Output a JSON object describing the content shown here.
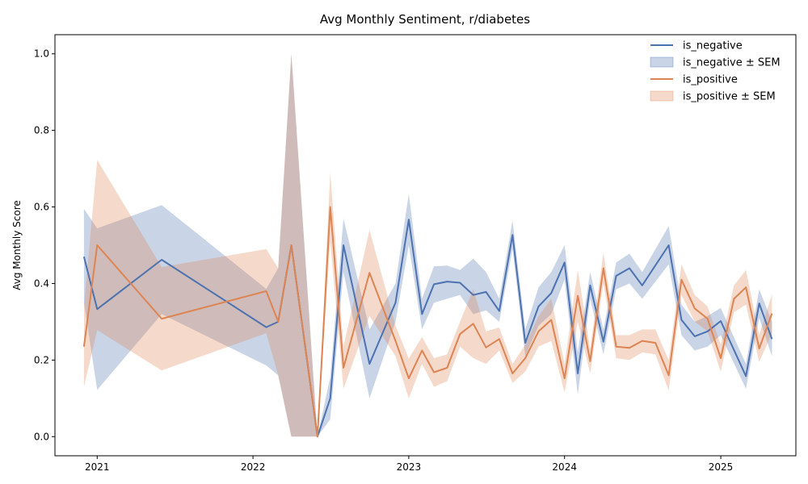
{
  "chart_data": {
    "type": "line",
    "title": "Avg Monthly Sentiment, r/diabetes",
    "xlabel": "",
    "ylabel": "Avg Monthly Score",
    "xlim": [
      "2020-09-24",
      "2025-06-26"
    ],
    "ylim": [
      -0.05,
      1.05
    ],
    "x_ticks": [
      "2021-01-01",
      "2022-01-01",
      "2023-01-01",
      "2024-01-01",
      "2025-01-01"
    ],
    "x_tick_labels": [
      "2021",
      "2022",
      "2023",
      "2024",
      "2025"
    ],
    "y_ticks": [
      0.0,
      0.2,
      0.4,
      0.6,
      0.8,
      1.0
    ],
    "y_tick_labels": [
      "0.0",
      "0.2",
      "0.4",
      "0.6",
      "0.8",
      "1.0"
    ],
    "grid": false,
    "legend_position": "top-right",
    "legend": [
      "is_negative",
      "is_negative ± SEM",
      "is_positive",
      "is_positive ± SEM"
    ],
    "series": [
      {
        "name": "is_negative",
        "band_name": "is_negative ± SEM",
        "color": "#4C72B0",
        "points": [
          {
            "x": "2020-12-01",
            "y": 0.47,
            "lo": 0.35,
            "hi": 0.595
          },
          {
            "x": "2021-01-01",
            "y": 0.333,
            "lo": 0.122,
            "hi": 0.544
          },
          {
            "x": "2021-06-01",
            "y": 0.462,
            "lo": 0.32,
            "hi": 0.605
          },
          {
            "x": "2022-02-01",
            "y": 0.286,
            "lo": 0.186,
            "hi": 0.386
          },
          {
            "x": "2022-03-01",
            "y": 0.3,
            "lo": 0.16,
            "hi": 0.44
          },
          {
            "x": "2022-04-01",
            "y": 0.5,
            "lo": 0.0,
            "hi": 1.0
          },
          {
            "x": "2022-06-01",
            "y": 0.0,
            "lo": 0.0,
            "hi": 0.0
          },
          {
            "x": "2022-07-01",
            "y": 0.1,
            "lo": 0.045,
            "hi": 0.155
          },
          {
            "x": "2022-08-01",
            "y": 0.5,
            "lo": 0.43,
            "hi": 0.57
          },
          {
            "x": "2022-10-01",
            "y": 0.19,
            "lo": 0.1,
            "hi": 0.28
          },
          {
            "x": "2022-12-01",
            "y": 0.35,
            "lo": 0.3,
            "hi": 0.4
          },
          {
            "x": "2023-01-01",
            "y": 0.567,
            "lo": 0.5,
            "hi": 0.634
          },
          {
            "x": "2023-02-01",
            "y": 0.32,
            "lo": 0.28,
            "hi": 0.36
          },
          {
            "x": "2023-03-01",
            "y": 0.398,
            "lo": 0.35,
            "hi": 0.445
          },
          {
            "x": "2023-04-01",
            "y": 0.405,
            "lo": 0.36,
            "hi": 0.447
          },
          {
            "x": "2023-05-01",
            "y": 0.402,
            "lo": 0.37,
            "hi": 0.435
          },
          {
            "x": "2023-06-01",
            "y": 0.37,
            "lo": 0.32,
            "hi": 0.465
          },
          {
            "x": "2023-07-01",
            "y": 0.378,
            "lo": 0.33,
            "hi": 0.43
          },
          {
            "x": "2023-08-01",
            "y": 0.328,
            "lo": 0.3,
            "hi": 0.36
          },
          {
            "x": "2023-09-01",
            "y": 0.527,
            "lo": 0.49,
            "hi": 0.565
          },
          {
            "x": "2023-10-01",
            "y": 0.245,
            "lo": 0.21,
            "hi": 0.28
          },
          {
            "x": "2023-11-01",
            "y": 0.34,
            "lo": 0.29,
            "hi": 0.39
          },
          {
            "x": "2023-12-01",
            "y": 0.375,
            "lo": 0.32,
            "hi": 0.43
          },
          {
            "x": "2024-01-01",
            "y": 0.455,
            "lo": 0.41,
            "hi": 0.5
          },
          {
            "x": "2024-02-01",
            "y": 0.165,
            "lo": 0.11,
            "hi": 0.22
          },
          {
            "x": "2024-03-01",
            "y": 0.395,
            "lo": 0.36,
            "hi": 0.43
          },
          {
            "x": "2024-04-01",
            "y": 0.248,
            "lo": 0.215,
            "hi": 0.28
          },
          {
            "x": "2024-05-01",
            "y": 0.42,
            "lo": 0.385,
            "hi": 0.455
          },
          {
            "x": "2024-06-01",
            "y": 0.44,
            "lo": 0.4,
            "hi": 0.478
          },
          {
            "x": "2024-07-01",
            "y": 0.395,
            "lo": 0.36,
            "hi": 0.43
          },
          {
            "x": "2024-09-01",
            "y": 0.5,
            "lo": 0.45,
            "hi": 0.55
          },
          {
            "x": "2024-10-01",
            "y": 0.305,
            "lo": 0.265,
            "hi": 0.345
          },
          {
            "x": "2024-11-01",
            "y": 0.262,
            "lo": 0.225,
            "hi": 0.3
          },
          {
            "x": "2024-12-01",
            "y": 0.275,
            "lo": 0.235,
            "hi": 0.315
          },
          {
            "x": "2025-01-01",
            "y": 0.302,
            "lo": 0.265,
            "hi": 0.336
          },
          {
            "x": "2025-03-01",
            "y": 0.158,
            "lo": 0.125,
            "hi": 0.19
          },
          {
            "x": "2025-04-01",
            "y": 0.348,
            "lo": 0.31,
            "hi": 0.385
          },
          {
            "x": "2025-05-01",
            "y": 0.255,
            "lo": 0.21,
            "hi": 0.3
          }
        ]
      },
      {
        "name": "is_positive",
        "band_name": "is_positive ± SEM",
        "color": "#DD8452",
        "points": [
          {
            "x": "2020-12-01",
            "y": 0.235,
            "lo": 0.13,
            "hi": 0.34
          },
          {
            "x": "2021-01-01",
            "y": 0.5,
            "lo": 0.278,
            "hi": 0.723
          },
          {
            "x": "2021-06-01",
            "y": 0.308,
            "lo": 0.173,
            "hi": 0.443
          },
          {
            "x": "2022-02-01",
            "y": 0.38,
            "lo": 0.27,
            "hi": 0.49
          },
          {
            "x": "2022-03-01",
            "y": 0.3,
            "lo": 0.16,
            "hi": 0.44
          },
          {
            "x": "2022-04-01",
            "y": 0.5,
            "lo": 0.0,
            "hi": 1.0
          },
          {
            "x": "2022-06-01",
            "y": 0.0,
            "lo": 0.0,
            "hi": 0.0
          },
          {
            "x": "2022-07-01",
            "y": 0.6,
            "lo": 0.51,
            "hi": 0.69
          },
          {
            "x": "2022-08-01",
            "y": 0.18,
            "lo": 0.125,
            "hi": 0.235
          },
          {
            "x": "2022-10-01",
            "y": 0.428,
            "lo": 0.315,
            "hi": 0.54
          },
          {
            "x": "2022-12-01",
            "y": 0.25,
            "lo": 0.21,
            "hi": 0.29
          },
          {
            "x": "2023-01-01",
            "y": 0.152,
            "lo": 0.1,
            "hi": 0.204
          },
          {
            "x": "2023-02-01",
            "y": 0.225,
            "lo": 0.19,
            "hi": 0.26
          },
          {
            "x": "2023-03-01",
            "y": 0.168,
            "lo": 0.13,
            "hi": 0.205
          },
          {
            "x": "2023-04-01",
            "y": 0.18,
            "lo": 0.145,
            "hi": 0.215
          },
          {
            "x": "2023-05-01",
            "y": 0.268,
            "lo": 0.235,
            "hi": 0.3
          },
          {
            "x": "2023-06-01",
            "y": 0.295,
            "lo": 0.205,
            "hi": 0.385
          },
          {
            "x": "2023-07-01",
            "y": 0.233,
            "lo": 0.19,
            "hi": 0.275
          },
          {
            "x": "2023-08-01",
            "y": 0.255,
            "lo": 0.225,
            "hi": 0.285
          },
          {
            "x": "2023-09-01",
            "y": 0.165,
            "lo": 0.14,
            "hi": 0.19
          },
          {
            "x": "2023-10-01",
            "y": 0.205,
            "lo": 0.17,
            "hi": 0.24
          },
          {
            "x": "2023-11-01",
            "y": 0.275,
            "lo": 0.235,
            "hi": 0.315
          },
          {
            "x": "2023-12-01",
            "y": 0.305,
            "lo": 0.25,
            "hi": 0.36
          },
          {
            "x": "2024-01-01",
            "y": 0.152,
            "lo": 0.115,
            "hi": 0.19
          },
          {
            "x": "2024-02-01",
            "y": 0.368,
            "lo": 0.3,
            "hi": 0.435
          },
          {
            "x": "2024-03-01",
            "y": 0.197,
            "lo": 0.165,
            "hi": 0.23
          },
          {
            "x": "2024-04-01",
            "y": 0.44,
            "lo": 0.4,
            "hi": 0.48
          },
          {
            "x": "2024-05-01",
            "y": 0.235,
            "lo": 0.205,
            "hi": 0.265
          },
          {
            "x": "2024-06-01",
            "y": 0.232,
            "lo": 0.2,
            "hi": 0.265
          },
          {
            "x": "2024-07-01",
            "y": 0.25,
            "lo": 0.22,
            "hi": 0.28
          },
          {
            "x": "2024-08-01",
            "y": 0.245,
            "lo": 0.215,
            "hi": 0.28
          },
          {
            "x": "2024-09-01",
            "y": 0.16,
            "lo": 0.12,
            "hi": 0.2
          },
          {
            "x": "2024-10-01",
            "y": 0.41,
            "lo": 0.37,
            "hi": 0.45
          },
          {
            "x": "2024-11-01",
            "y": 0.335,
            "lo": 0.3,
            "hi": 0.37
          },
          {
            "x": "2024-12-01",
            "y": 0.308,
            "lo": 0.275,
            "hi": 0.34
          },
          {
            "x": "2025-01-01",
            "y": 0.205,
            "lo": 0.17,
            "hi": 0.24
          },
          {
            "x": "2025-02-01",
            "y": 0.36,
            "lo": 0.325,
            "hi": 0.395
          },
          {
            "x": "2025-03-01",
            "y": 0.39,
            "lo": 0.345,
            "hi": 0.435
          },
          {
            "x": "2025-04-01",
            "y": 0.23,
            "lo": 0.195,
            "hi": 0.265
          },
          {
            "x": "2025-05-01",
            "y": 0.322,
            "lo": 0.27,
            "hi": 0.372
          }
        ]
      }
    ]
  }
}
